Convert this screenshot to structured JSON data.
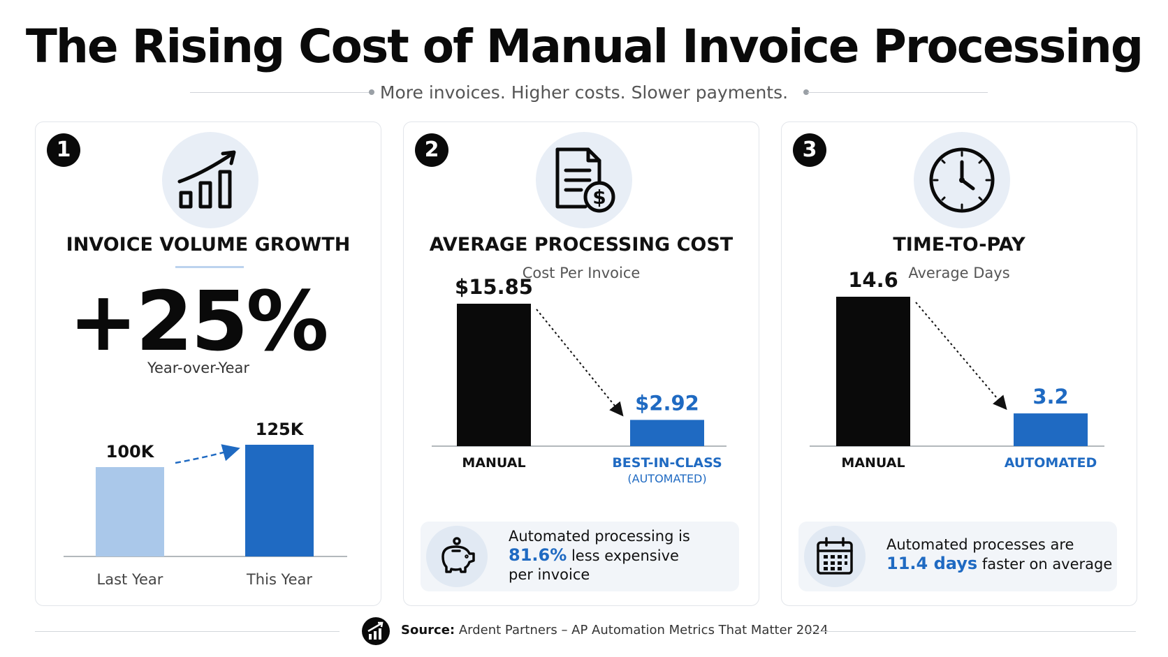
{
  "title": "The Rising Cost of Manual Invoice Processing",
  "subtitle": "More invoices. Higher costs. Slower payments.",
  "colors": {
    "dark": "#0a0a0a",
    "blue": "#1f6ac2",
    "light_blue": "#aac8ea",
    "circle_bg": "#e8eef6"
  },
  "cards": [
    {
      "number": "1",
      "icon": "bar-growth-icon",
      "title": "INVOICE VOLUME GROWTH",
      "big_value": "+25%",
      "big_caption": "Year-over-Year"
    },
    {
      "number": "2",
      "icon": "invoice-dollar-icon",
      "title": "AVERAGE PROCESSING COST",
      "subtitle": "Cost Per Invoice",
      "callout": {
        "icon": "piggy-bank-icon",
        "line1": "Automated processing is",
        "highlight": "81.6%",
        "line2": " less expensive",
        "line3": "per invoice"
      }
    },
    {
      "number": "3",
      "icon": "clock-icon",
      "title": "TIME-TO-PAY",
      "subtitle": "Average Days",
      "callout": {
        "icon": "calendar-icon",
        "line1": "Automated processes are",
        "highlight": "11.4 days",
        "line2": " faster on average"
      }
    }
  ],
  "chart_data": [
    {
      "type": "bar",
      "categories": [
        "Last Year",
        "This Year"
      ],
      "values": [
        100,
        125
      ],
      "value_labels": [
        "100K",
        "125K"
      ],
      "colors": [
        "#aac8ea",
        "#1f6ac2"
      ]
    },
    {
      "type": "bar",
      "categories": [
        "MANUAL",
        "BEST-IN-CLASS"
      ],
      "category_sublabels": [
        "",
        "(AUTOMATED)"
      ],
      "values": [
        15.85,
        2.92
      ],
      "value_labels": [
        "$15.85",
        "$2.92"
      ],
      "colors": [
        "#0a0a0a",
        "#1f6ac2"
      ]
    },
    {
      "type": "bar",
      "categories": [
        "MANUAL",
        "AUTOMATED"
      ],
      "values": [
        14.6,
        3.2
      ],
      "value_labels": [
        "14.6",
        "3.2"
      ],
      "colors": [
        "#0a0a0a",
        "#1f6ac2"
      ]
    }
  ],
  "footer": {
    "source_label": "Source:",
    "source_text": "Ardent Partners – AP Automation Metrics That Matter 2024",
    "icon": "chart-logo-icon"
  }
}
